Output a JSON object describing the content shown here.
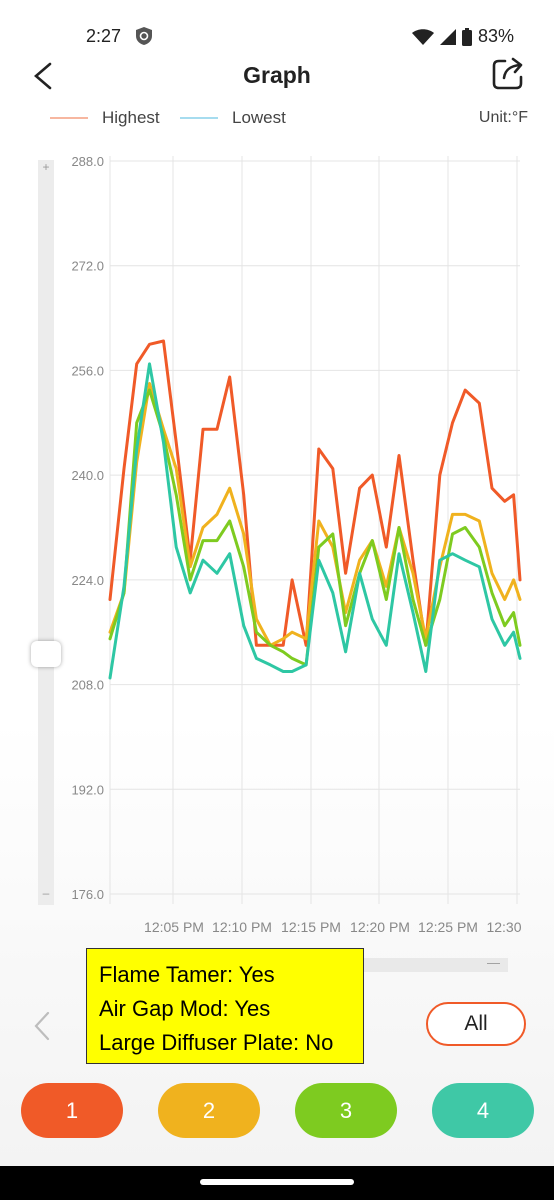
{
  "status_bar": {
    "time": "2:27",
    "battery": "83%",
    "icons": [
      "shield-icon",
      "wifi-icon",
      "signal-icon",
      "battery-icon"
    ]
  },
  "header": {
    "title": "Graph",
    "back_icon": "back-arrow-icon",
    "share_icon": "share-icon"
  },
  "legend": {
    "highest": "Highest",
    "lowest": "Lowest",
    "unit": "Unit:°F",
    "highest_color": "#f7b7a0",
    "lowest_color": "#a6dcef"
  },
  "chart_data": {
    "type": "line",
    "ylim": [
      176,
      288
    ],
    "yticks": [
      "288.0",
      "272.0",
      "256.0",
      "240.0",
      "224.0",
      "208.0",
      "192.0",
      "176.0"
    ],
    "xticks": [
      "12:05 PM",
      "12:10 PM",
      "12:15 PM",
      "12:20 PM",
      "12:25 PM",
      "12:30"
    ],
    "grid": true,
    "series": [
      {
        "color": "#f05a28",
        "values": [
          [
            0.0,
            221
          ],
          [
            1.1,
            241
          ],
          [
            2.1,
            257
          ],
          [
            3.1,
            260
          ],
          [
            4.2,
            260.5
          ],
          [
            5.2,
            245
          ],
          [
            6.3,
            227
          ],
          [
            7.3,
            247
          ],
          [
            8.4,
            247
          ],
          [
            9.4,
            255
          ],
          [
            10.5,
            237
          ],
          [
            11.5,
            214
          ],
          [
            12.6,
            214
          ],
          [
            13.6,
            214
          ],
          [
            14.3,
            224
          ],
          [
            15.4,
            214
          ],
          [
            16.4,
            244
          ],
          [
            17.5,
            241
          ],
          [
            18.5,
            225
          ],
          [
            19.6,
            238
          ],
          [
            20.6,
            240
          ],
          [
            21.7,
            229
          ],
          [
            22.7,
            243
          ],
          [
            23.8,
            227
          ],
          [
            24.8,
            214
          ],
          [
            25.9,
            240
          ],
          [
            26.9,
            248
          ],
          [
            27.9,
            253
          ],
          [
            29.0,
            251
          ],
          [
            30.0,
            238
          ],
          [
            31.0,
            236
          ],
          [
            31.7,
            237
          ],
          [
            32.2,
            224
          ]
        ]
      },
      {
        "color": "#f0b21e",
        "values": [
          [
            0.0,
            216
          ],
          [
            1.1,
            222
          ],
          [
            2.1,
            242
          ],
          [
            3.1,
            254
          ],
          [
            4.2,
            247
          ],
          [
            5.2,
            241
          ],
          [
            6.3,
            226
          ],
          [
            7.3,
            232
          ],
          [
            8.4,
            234
          ],
          [
            9.4,
            238
          ],
          [
            10.5,
            231
          ],
          [
            11.5,
            218
          ],
          [
            12.6,
            214
          ],
          [
            13.6,
            215
          ],
          [
            14.3,
            216
          ],
          [
            15.4,
            215
          ],
          [
            16.4,
            233
          ],
          [
            17.5,
            229
          ],
          [
            18.5,
            219
          ],
          [
            19.6,
            227
          ],
          [
            20.6,
            230
          ],
          [
            21.7,
            223
          ],
          [
            22.7,
            232
          ],
          [
            23.8,
            225
          ],
          [
            24.8,
            215
          ],
          [
            25.9,
            226
          ],
          [
            26.9,
            234
          ],
          [
            27.9,
            234
          ],
          [
            29.0,
            233
          ],
          [
            30.0,
            225
          ],
          [
            31.0,
            221
          ],
          [
            31.7,
            224
          ],
          [
            32.2,
            221
          ]
        ]
      },
      {
        "color": "#7ecb20",
        "values": [
          [
            0.0,
            215
          ],
          [
            1.1,
            222
          ],
          [
            2.1,
            248
          ],
          [
            3.1,
            253
          ],
          [
            4.2,
            246
          ],
          [
            5.2,
            237
          ],
          [
            6.3,
            224
          ],
          [
            7.3,
            230
          ],
          [
            8.4,
            230
          ],
          [
            9.4,
            233
          ],
          [
            10.5,
            226
          ],
          [
            11.5,
            216
          ],
          [
            12.6,
            214
          ],
          [
            13.6,
            213
          ],
          [
            14.3,
            212
          ],
          [
            15.4,
            211
          ],
          [
            16.4,
            229
          ],
          [
            17.5,
            231
          ],
          [
            18.5,
            217
          ],
          [
            19.6,
            225
          ],
          [
            20.6,
            230
          ],
          [
            21.7,
            221
          ],
          [
            22.7,
            232
          ],
          [
            23.8,
            221
          ],
          [
            24.8,
            214
          ],
          [
            25.9,
            221
          ],
          [
            26.9,
            231
          ],
          [
            27.9,
            232
          ],
          [
            29.0,
            229
          ],
          [
            30.0,
            222
          ],
          [
            31.0,
            217
          ],
          [
            31.7,
            219
          ],
          [
            32.2,
            214
          ]
        ]
      },
      {
        "color": "#2ec7a4",
        "values": [
          [
            0.0,
            209
          ],
          [
            1.1,
            223
          ],
          [
            2.1,
            244
          ],
          [
            3.1,
            257
          ],
          [
            4.2,
            245
          ],
          [
            5.2,
            229
          ],
          [
            6.3,
            222
          ],
          [
            7.3,
            227
          ],
          [
            8.4,
            225
          ],
          [
            9.4,
            228
          ],
          [
            10.5,
            217
          ],
          [
            11.5,
            212
          ],
          [
            12.6,
            211
          ],
          [
            13.6,
            210
          ],
          [
            14.3,
            210
          ],
          [
            15.4,
            211
          ],
          [
            16.4,
            227
          ],
          [
            17.5,
            222
          ],
          [
            18.5,
            213
          ],
          [
            19.6,
            225
          ],
          [
            20.6,
            218
          ],
          [
            21.7,
            214
          ],
          [
            22.7,
            228
          ],
          [
            23.8,
            219
          ],
          [
            24.8,
            210
          ],
          [
            25.9,
            227
          ],
          [
            26.9,
            228
          ],
          [
            27.9,
            227
          ],
          [
            29.0,
            226
          ],
          [
            30.0,
            218
          ],
          [
            31.0,
            214
          ],
          [
            31.7,
            216
          ],
          [
            32.2,
            212
          ]
        ]
      }
    ]
  },
  "note": {
    "lines": [
      "Flame Tamer: Yes",
      "Air Gap Mod: Yes",
      "Large Diffuser Plate: No"
    ]
  },
  "controls": {
    "all_label": "All",
    "prev_icon": "chevron-left-icon",
    "probes": [
      {
        "label": "1",
        "color": "#f05a28"
      },
      {
        "label": "2",
        "color": "#f0b21e"
      },
      {
        "label": "3",
        "color": "#7ecb20"
      },
      {
        "label": "4",
        "color": "#3fc8a6"
      }
    ]
  }
}
